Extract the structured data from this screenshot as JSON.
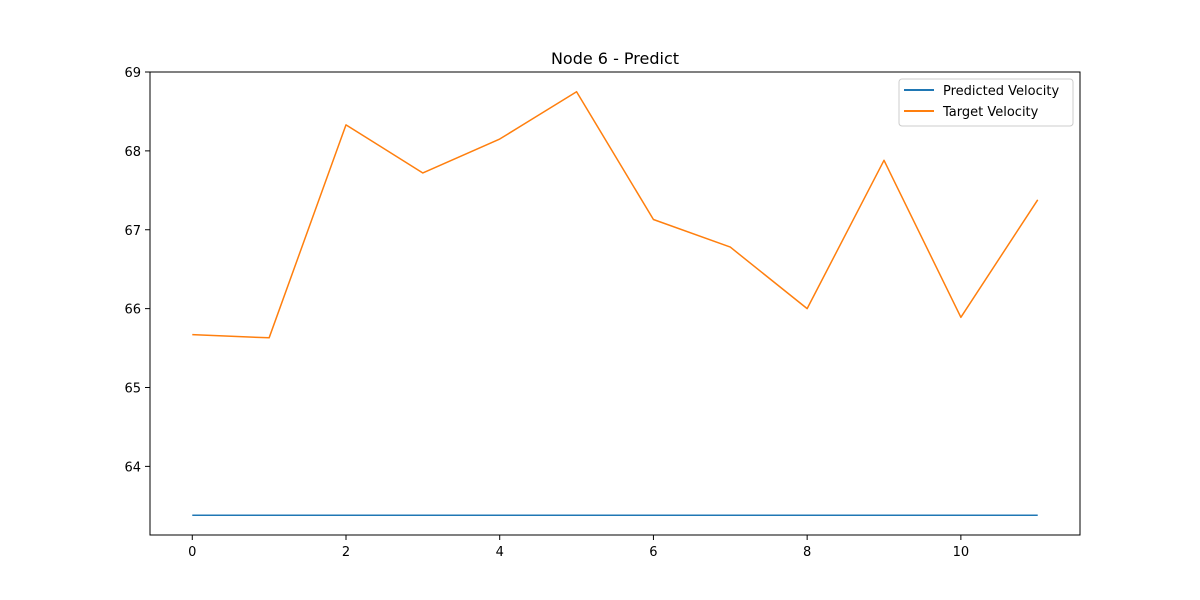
{
  "chart_data": {
    "type": "line",
    "title": "Node 6 - Predict",
    "xlabel": "",
    "ylabel": "",
    "x": [
      0,
      1,
      2,
      3,
      4,
      5,
      6,
      7,
      8,
      9,
      10,
      11
    ],
    "xlim": [
      -0.55,
      11.55
    ],
    "ylim": [
      63.13,
      69.0
    ],
    "xticks": [
      0,
      2,
      4,
      6,
      8,
      10
    ],
    "yticks": [
      64,
      65,
      66,
      67,
      68,
      69
    ],
    "grid": false,
    "legend_position": "top-right",
    "series": [
      {
        "name": "Predicted Velocity",
        "color": "#1f77b4",
        "values": [
          63.38,
          63.38,
          63.38,
          63.38,
          63.38,
          63.38,
          63.38,
          63.38,
          63.38,
          63.38,
          63.38,
          63.38
        ]
      },
      {
        "name": "Target Velocity",
        "color": "#ff7f0e",
        "values": [
          65.67,
          65.63,
          68.33,
          67.72,
          68.15,
          68.75,
          67.13,
          66.78,
          66.0,
          67.88,
          65.89,
          67.38
        ]
      }
    ]
  }
}
